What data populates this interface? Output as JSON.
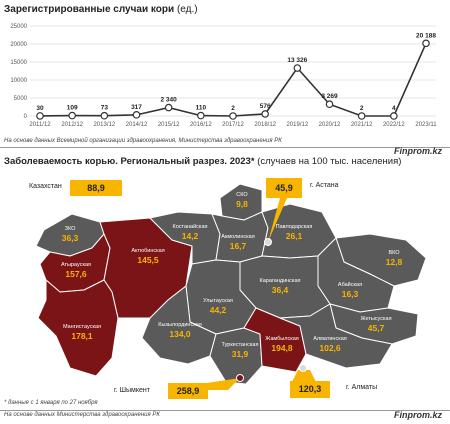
{
  "chart_data": [
    {
      "type": "line",
      "title": "Зарегистрированные случаи кори",
      "unit": "(ед.)",
      "x": [
        "2011/12",
        "2012/12",
        "2013/12",
        "2014/12",
        "2015/12",
        "2016/12",
        "2017/12",
        "2018/12",
        "2019/12",
        "2020/12",
        "2021/12",
        "2022/12",
        "2023/11"
      ],
      "values": [
        30,
        109,
        73,
        317,
        2340,
        110,
        2,
        576,
        13326,
        3269,
        2,
        4,
        20188
      ],
      "value_labels": [
        "30",
        "109",
        "73",
        "317",
        "2 340",
        "110",
        "2",
        "576",
        "13 326",
        "3 269",
        "2",
        "4",
        "20 188"
      ],
      "ylim": [
        0,
        25000
      ],
      "yticks": [
        0,
        5000,
        10000,
        15000,
        20000,
        25000
      ],
      "ytick_labels": [
        "0",
        "5000",
        "10000",
        "15000",
        "20000",
        "25000"
      ],
      "grid": true,
      "line_color": "#333333",
      "source": "На основе данных Всемирной организации здравоохранения, Министерства здравоохранения РК",
      "brand": "Finprom.kz"
    },
    {
      "type": "choropleth-map",
      "title": "Заболеваемость корью. Региональный разрез. 2023*",
      "unit": "(случаев на 100 тыс. населения)",
      "regions": [
        {
          "name": "ЗКО",
          "value": "36,3",
          "highlight": false
        },
        {
          "name": "Атырауская",
          "value": "157,6",
          "highlight": true
        },
        {
          "name": "Актюбинская",
          "value": "145,5",
          "highlight": true
        },
        {
          "name": "Мангистауская",
          "value": "178,1",
          "highlight": true
        },
        {
          "name": "Костанайская",
          "value": "14,2",
          "highlight": false
        },
        {
          "name": "СКО",
          "value": "9,8",
          "highlight": false
        },
        {
          "name": "Акмолинская",
          "value": "16,7",
          "highlight": false
        },
        {
          "name": "Павлодарская",
          "value": "26,1",
          "highlight": false
        },
        {
          "name": "ВКО",
          "value": "12,8",
          "highlight": false
        },
        {
          "name": "Карагандинская",
          "value": "36,4",
          "highlight": false
        },
        {
          "name": "Абайская",
          "value": "16,3",
          "highlight": false
        },
        {
          "name": "Улытауская",
          "value": "44,2",
          "highlight": false
        },
        {
          "name": "Жетысуская",
          "value": "45,7",
          "highlight": false
        },
        {
          "name": "Кызылординская",
          "value": "134,0",
          "highlight": false
        },
        {
          "name": "Алматинская",
          "value": "102,6",
          "highlight": false
        },
        {
          "name": "Туркестанская",
          "value": "31,9",
          "highlight": false
        },
        {
          "name": "Жамбылская",
          "value": "194,8",
          "highlight": true
        }
      ],
      "cities": [
        {
          "name": "г. Астана",
          "value": "45,9"
        },
        {
          "name": "г. Шымкент",
          "value": "258,9"
        },
        {
          "name": "г. Алматы",
          "value": "120,3"
        }
      ],
      "country": {
        "name": "Казахстан",
        "value": "88,9"
      },
      "colors": {
        "normal": "#5a5a5a",
        "highlight": "#7b1416",
        "label": "#f7b500",
        "callout": "#f7b500"
      },
      "footnote": "* данные с 1 января по 27 ноября",
      "source": "На основе данных Министерства здравоохранения РК",
      "brand": "Finprom.kz"
    }
  ]
}
